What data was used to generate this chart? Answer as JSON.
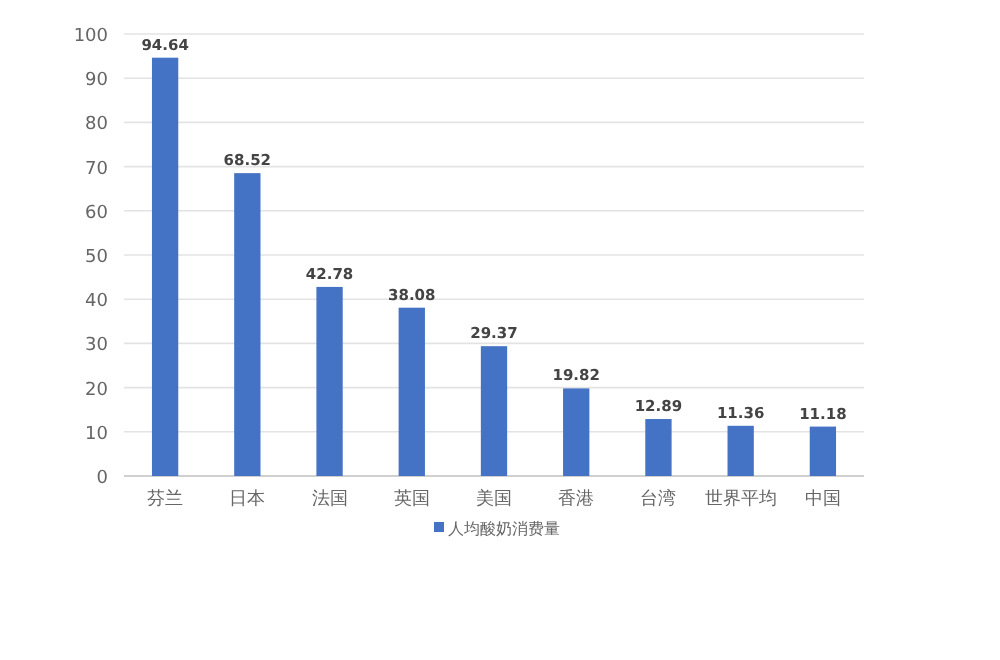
{
  "chart_data": {
    "type": "bar",
    "categories": [
      "芬兰",
      "日本",
      "法国",
      "英国",
      "美国",
      "香港",
      "台湾",
      "世界平均",
      "中国"
    ],
    "series": [
      {
        "name": "人均酸奶消费量",
        "color": "#4472c4",
        "values": [
          94.64,
          68.52,
          42.78,
          38.08,
          29.37,
          19.82,
          12.89,
          11.36,
          11.18
        ]
      }
    ],
    "ylim": [
      0,
      100
    ],
    "yticks": [
      0,
      10,
      20,
      30,
      40,
      50,
      60,
      70,
      80,
      90,
      100
    ],
    "grid": "y",
    "legend": "bottom",
    "data_labels": true
  }
}
